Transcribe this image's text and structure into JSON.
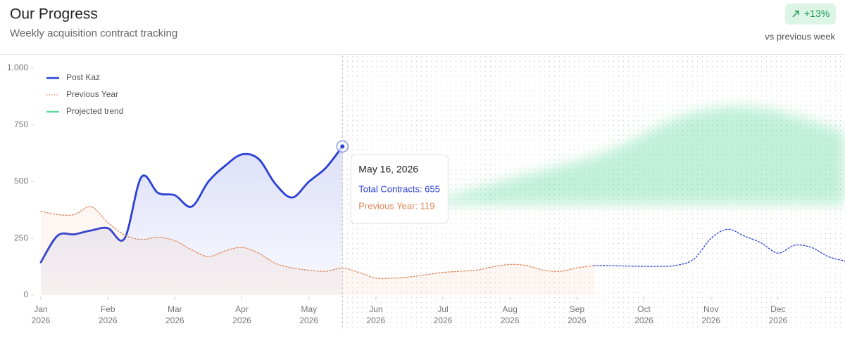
{
  "header": {
    "title": "Our Progress",
    "subtitle": "Weekly acquisition contract tracking",
    "badge": "+13%",
    "badge_caption": "vs previous week"
  },
  "chart_data": {
    "type": "line",
    "x": [
      1,
      1.25,
      1.5,
      1.75,
      2,
      2.25,
      2.5,
      2.75,
      3,
      3.25,
      3.5,
      3.75,
      4,
      4.25,
      4.5,
      4.75,
      5,
      5.25,
      5.5,
      5.75,
      6,
      6.25,
      6.5,
      6.75,
      7,
      7.25,
      7.5,
      7.75,
      8,
      8.25,
      8.5,
      8.75,
      9,
      9.25,
      9.5,
      9.75,
      10,
      10.25,
      10.5,
      10.75,
      11,
      11.25,
      11.5,
      11.75,
      12,
      12.25,
      12.5,
      12.75,
      13
    ],
    "xlim": [
      1,
      13
    ],
    "xticks": [
      {
        "value": 1,
        "label": "Jan 2026"
      },
      {
        "value": 2,
        "label": "Feb 2026"
      },
      {
        "value": 3,
        "label": "Mar 2026"
      },
      {
        "value": 4,
        "label": "Apr 2026"
      },
      {
        "value": 5,
        "label": "May 2026"
      },
      {
        "value": 6,
        "label": "Jun 2026"
      },
      {
        "value": 7,
        "label": "Jul 2026"
      },
      {
        "value": 8,
        "label": "Aug 2026"
      },
      {
        "value": 9,
        "label": "Sep 2026"
      },
      {
        "value": 10,
        "label": "Oct 2026"
      },
      {
        "value": 11,
        "label": "Nov 2026"
      },
      {
        "value": 12,
        "label": "Dec 2026"
      }
    ],
    "ylim": [
      0,
      1000
    ],
    "yticks": [
      0,
      250,
      500,
      750,
      {
        "value": 1000,
        "label": "1,000"
      }
    ],
    "series": [
      {
        "name": "Post Kaz",
        "color": "#2a3fd6",
        "values": [
          145,
          262,
          268,
          285,
          295,
          250,
          520,
          450,
          440,
          390,
          500,
          570,
          620,
          600,
          490,
          430,
          500,
          560,
          655,
          null,
          null,
          null,
          null,
          null,
          null,
          null,
          null,
          null,
          null,
          null,
          null,
          null,
          null,
          130,
          130,
          128,
          127,
          127,
          132,
          160,
          250,
          290,
          260,
          230,
          185,
          220,
          210,
          170,
          150
        ]
      },
      {
        "name": "Previous Year",
        "color": "#e0895a",
        "dashed": true,
        "values": [
          370,
          355,
          355,
          390,
          320,
          265,
          245,
          255,
          240,
          200,
          170,
          195,
          210,
          185,
          140,
          120,
          110,
          105,
          119,
          100,
          75,
          75,
          80,
          90,
          100,
          105,
          110,
          125,
          135,
          130,
          110,
          105,
          120,
          130,
          null,
          null,
          null,
          null,
          null,
          null,
          null,
          null,
          null,
          null,
          null,
          null,
          null,
          null,
          null
        ]
      },
      {
        "name": "Projected trend",
        "color": "#5fd9a0",
        "lower": [
          null,
          null,
          null,
          null,
          null,
          null,
          null,
          null,
          null,
          null,
          null,
          null,
          null,
          null,
          null,
          null,
          null,
          null,
          330,
          300,
          270,
          260,
          260,
          270,
          285,
          300,
          320,
          340,
          360,
          375,
          390,
          405,
          420,
          440,
          460,
          470,
          480,
          490,
          495,
          500,
          505,
          510,
          510,
          500,
          480,
          460,
          440,
          420,
          400
        ],
        "upper": [
          null,
          null,
          null,
          null,
          null,
          null,
          null,
          null,
          null,
          null,
          null,
          null,
          null,
          null,
          null,
          null,
          null,
          null,
          400,
          390,
          385,
          390,
          400,
          415,
          430,
          450,
          470,
          490,
          510,
          530,
          550,
          570,
          590,
          610,
          640,
          670,
          710,
          750,
          780,
          805,
          820,
          830,
          830,
          825,
          810,
          790,
          770,
          745,
          720
        ]
      }
    ],
    "tooltip": {
      "x": 5.5,
      "title": "May 16, 2026",
      "lines": [
        "Total Contracts: 655",
        "Previous Year: 119"
      ]
    }
  }
}
